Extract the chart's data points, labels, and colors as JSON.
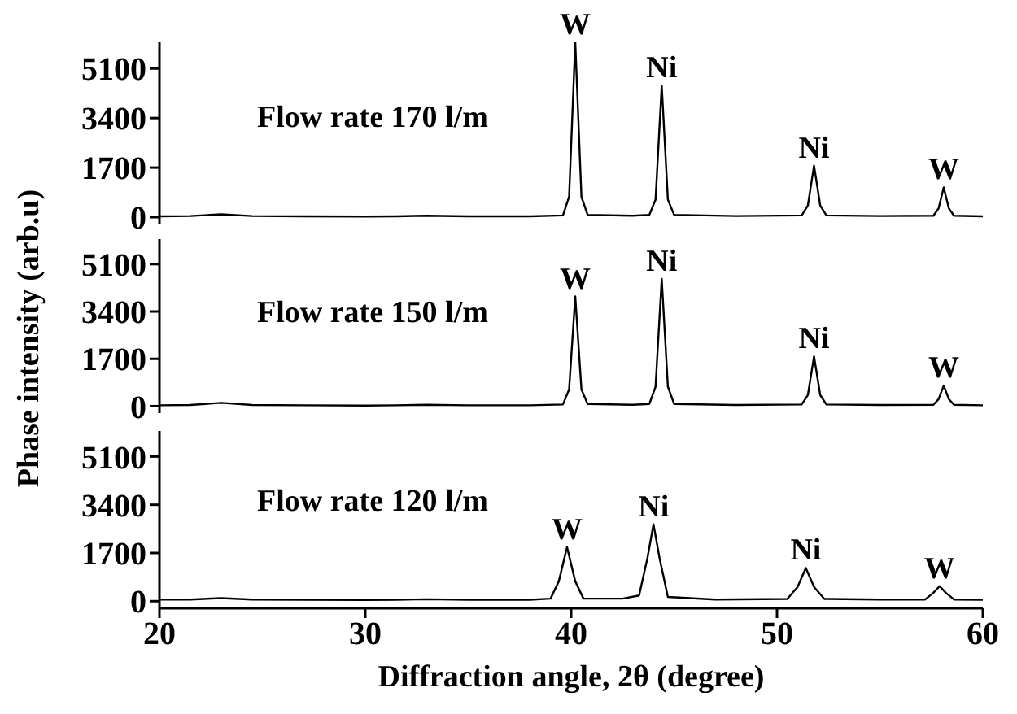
{
  "chart_data": [
    {
      "type": "line",
      "series": [
        {
          "name": "Flow rate 170 l/m",
          "color": "#000000",
          "x": [
            20,
            21.5,
            23,
            24.5,
            27,
            30,
            31.5,
            33,
            35,
            38,
            39.6,
            39.9,
            40.2,
            40.5,
            40.8,
            43,
            43.8,
            44.1,
            44.4,
            44.7,
            45,
            48,
            51.2,
            51.5,
            51.8,
            52.1,
            52.4,
            55,
            57.6,
            57.85,
            58.1,
            58.35,
            58.6,
            60
          ],
          "values": [
            30,
            40,
            100,
            40,
            30,
            20,
            30,
            50,
            30,
            30,
            60,
            700,
            6000,
            700,
            80,
            50,
            80,
            600,
            4510,
            600,
            80,
            40,
            60,
            400,
            1770,
            400,
            60,
            40,
            50,
            300,
            1020,
            300,
            50,
            30
          ]
        }
      ],
      "xlim": [
        20,
        60
      ],
      "xticks": [
        20,
        30,
        40,
        50,
        60
      ],
      "ylim": [
        -250,
        6000
      ],
      "yticks": [
        0,
        1700,
        3400,
        5100
      ],
      "tick_labels": "y",
      "grid": false,
      "legend": false,
      "line_style": "solid",
      "marker": "none",
      "annotations": [
        {
          "text": "W",
          "x": 40.2,
          "y": 6000
        },
        {
          "text": "Ni",
          "x": 44.4,
          "y": 4510
        },
        {
          "text": "Ni",
          "x": 51.8,
          "y": 1770
        },
        {
          "text": "W",
          "x": 58.1,
          "y": 1020
        }
      ]
    },
    {
      "type": "line",
      "series": [
        {
          "name": "Flow rate 150 l/m",
          "color": "#000000",
          "x": [
            20,
            21.5,
            23,
            24.5,
            27,
            30,
            31.5,
            33,
            35,
            38,
            39.6,
            39.9,
            40.2,
            40.5,
            40.8,
            43,
            43.8,
            44.1,
            44.4,
            44.7,
            45,
            48,
            51.2,
            51.5,
            51.8,
            52.1,
            52.4,
            55,
            57.6,
            57.85,
            58.1,
            58.35,
            58.6,
            60
          ],
          "values": [
            30,
            40,
            120,
            40,
            30,
            20,
            30,
            50,
            30,
            30,
            60,
            600,
            3940,
            600,
            80,
            50,
            80,
            700,
            4570,
            700,
            80,
            40,
            60,
            400,
            1790,
            400,
            60,
            40,
            50,
            250,
            740,
            250,
            50,
            30
          ]
        }
      ],
      "ylabel": "Phase intensity (arb.u)",
      "xlim": [
        20,
        60
      ],
      "xticks": [
        20,
        30,
        40,
        50,
        60
      ],
      "ylim": [
        -250,
        6000
      ],
      "yticks": [
        0,
        1700,
        3400,
        5100
      ],
      "tick_labels": "y",
      "grid": false,
      "legend": false,
      "line_style": "solid",
      "marker": "none",
      "annotations": [
        {
          "text": "W",
          "x": 40.2,
          "y": 3940
        },
        {
          "text": "Ni",
          "x": 44.4,
          "y": 4570
        },
        {
          "text": "Ni",
          "x": 51.8,
          "y": 1790
        },
        {
          "text": "W",
          "x": 58.1,
          "y": 740
        }
      ]
    },
    {
      "type": "line",
      "series": [
        {
          "name": "Flow rate 120 l/m",
          "color": "#000000",
          "x": [
            20,
            21.5,
            23,
            24.5,
            27,
            30,
            31.5,
            33,
            35,
            38,
            39,
            39.4,
            39.8,
            40.2,
            40.6,
            42.5,
            43.3,
            43.7,
            44,
            44.3,
            44.7,
            47,
            50.5,
            51,
            51.4,
            51.8,
            52.3,
            55,
            57.2,
            57.6,
            57.9,
            58.2,
            58.6,
            60
          ],
          "values": [
            60,
            60,
            110,
            60,
            50,
            40,
            50,
            70,
            50,
            50,
            90,
            700,
            1910,
            700,
            90,
            90,
            200,
            1500,
            2710,
            1500,
            150,
            60,
            80,
            500,
            1170,
            500,
            80,
            60,
            60,
            300,
            530,
            300,
            60,
            50
          ]
        }
      ],
      "xlabel": "Diffraction angle, 2θ (degree)",
      "xlim": [
        20,
        60
      ],
      "xticks": [
        20,
        30,
        40,
        50,
        60
      ],
      "ylim": [
        -250,
        6000
      ],
      "yticks": [
        0,
        1700,
        3400,
        5100
      ],
      "grid": false,
      "legend": false,
      "line_style": "solid",
      "marker": "none",
      "annotations": [
        {
          "text": "W",
          "x": 39.8,
          "y": 1910
        },
        {
          "text": "Ni",
          "x": 44,
          "y": 2710
        },
        {
          "text": "Ni",
          "x": 51.4,
          "y": 1170
        },
        {
          "text": "W",
          "x": 57.9,
          "y": 530
        }
      ]
    }
  ]
}
